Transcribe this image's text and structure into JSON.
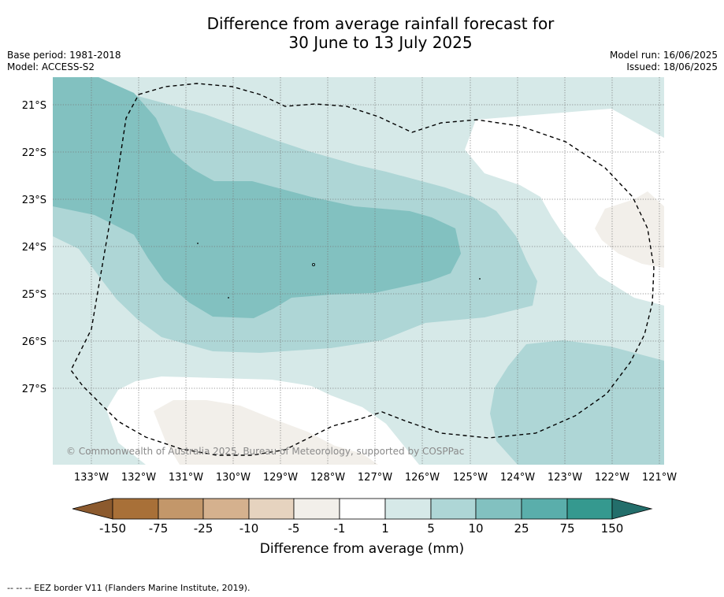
{
  "title": {
    "line1": "Difference from average rainfall forecast for",
    "line2": "30 June to 13 July 2025"
  },
  "meta": {
    "base_period": "Base period: 1981-2018",
    "model": "Model: ACCESS-S2",
    "model_run": "Model run: 16/06/2025",
    "issued": "Issued: 18/06/2025"
  },
  "map": {
    "lat_labels": [
      "21°S",
      "22°S",
      "23°S",
      "24°S",
      "25°S",
      "26°S",
      "27°S"
    ],
    "lon_labels": [
      "133°W",
      "132°W",
      "131°W",
      "130°W",
      "129°W",
      "128°W",
      "127°W",
      "126°W",
      "125°W",
      "124°W",
      "123°W",
      "122°W",
      "121°W"
    ],
    "copyright": "© Commonwealth of Australia 2025, Bureau of Meteorology, supported by COSPPac"
  },
  "colorbar": {
    "labels": [
      "-150",
      "-75",
      "-25",
      "-10",
      "-5",
      "-1",
      "1",
      "5",
      "10",
      "25",
      "75",
      "150"
    ],
    "colors": [
      "#8c5a2e",
      "#a87038",
      "#c3976a",
      "#d5b18e",
      "#e6d3bf",
      "#f2efea",
      "#ffffff",
      "#d6e9e8",
      "#aed6d6",
      "#82c1c0",
      "#5aaeab",
      "#35998f",
      "#236e6b"
    ],
    "label": "Difference from average (mm)"
  },
  "footnote": "-- -- -- EEZ border V11 (Flanders Marine Institute, 2019)."
}
